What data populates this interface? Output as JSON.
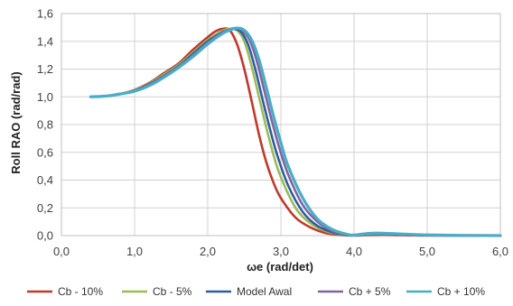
{
  "chart_data": {
    "type": "line",
    "xlabel": "ωe (rad/det)",
    "ylabel": "Roll RAO (rad/rad)",
    "xlim": [
      0,
      6
    ],
    "ylim": [
      0,
      1.6
    ],
    "x_ticks": [
      "0,0",
      "1,0",
      "2,0",
      "3,0",
      "4,0",
      "5,0",
      "6,0"
    ],
    "y_ticks": [
      "0,0",
      "0,2",
      "0,4",
      "0,6",
      "0,8",
      "1,0",
      "1,2",
      "1,4",
      "1,6"
    ],
    "grid": true,
    "legend_position": "bottom",
    "series": [
      {
        "name": "Cb - 10%",
        "color": "#c0392b",
        "points": [
          [
            0.4,
            1.0
          ],
          [
            0.6,
            1.005
          ],
          [
            0.8,
            1.02
          ],
          [
            1.0,
            1.05
          ],
          [
            1.2,
            1.1
          ],
          [
            1.4,
            1.17
          ],
          [
            1.6,
            1.24
          ],
          [
            1.8,
            1.34
          ],
          [
            2.0,
            1.43
          ],
          [
            2.1,
            1.47
          ],
          [
            2.2,
            1.49
          ],
          [
            2.3,
            1.48
          ],
          [
            2.4,
            1.38
          ],
          [
            2.5,
            1.2
          ],
          [
            2.6,
            0.97
          ],
          [
            2.7,
            0.73
          ],
          [
            2.8,
            0.53
          ],
          [
            2.9,
            0.38
          ],
          [
            3.0,
            0.27
          ],
          [
            3.2,
            0.13
          ],
          [
            3.4,
            0.06
          ],
          [
            3.6,
            0.02
          ],
          [
            3.8,
            0.005
          ],
          [
            4.0,
            0.0
          ],
          [
            4.4,
            0.005
          ],
          [
            5.0,
            0.0
          ],
          [
            6.0,
            0.0
          ]
        ]
      },
      {
        "name": "Cb - 5%",
        "color": "#9bbb59",
        "points": [
          [
            0.4,
            1.0
          ],
          [
            0.6,
            1.005
          ],
          [
            0.8,
            1.02
          ],
          [
            1.0,
            1.048
          ],
          [
            1.2,
            1.095
          ],
          [
            1.4,
            1.16
          ],
          [
            1.6,
            1.23
          ],
          [
            1.8,
            1.32
          ],
          [
            2.0,
            1.41
          ],
          [
            2.2,
            1.475
          ],
          [
            2.3,
            1.49
          ],
          [
            2.4,
            1.48
          ],
          [
            2.5,
            1.4
          ],
          [
            2.6,
            1.22
          ],
          [
            2.7,
            1.0
          ],
          [
            2.8,
            0.78
          ],
          [
            2.9,
            0.58
          ],
          [
            3.0,
            0.42
          ],
          [
            3.2,
            0.2
          ],
          [
            3.4,
            0.09
          ],
          [
            3.6,
            0.035
          ],
          [
            3.8,
            0.01
          ],
          [
            4.0,
            0.002
          ],
          [
            4.4,
            0.01
          ],
          [
            5.0,
            0.002
          ],
          [
            6.0,
            0.0
          ]
        ]
      },
      {
        "name": "Model Awal",
        "color": "#2e5d9f",
        "points": [
          [
            0.4,
            1.0
          ],
          [
            0.6,
            1.005
          ],
          [
            0.8,
            1.02
          ],
          [
            1.0,
            1.045
          ],
          [
            1.2,
            1.09
          ],
          [
            1.4,
            1.15
          ],
          [
            1.6,
            1.22
          ],
          [
            1.8,
            1.31
          ],
          [
            2.0,
            1.4
          ],
          [
            2.2,
            1.465
          ],
          [
            2.3,
            1.485
          ],
          [
            2.35,
            1.49
          ],
          [
            2.45,
            1.47
          ],
          [
            2.55,
            1.38
          ],
          [
            2.65,
            1.2
          ],
          [
            2.75,
            0.98
          ],
          [
            2.85,
            0.77
          ],
          [
            2.95,
            0.58
          ],
          [
            3.1,
            0.36
          ],
          [
            3.3,
            0.17
          ],
          [
            3.5,
            0.07
          ],
          [
            3.7,
            0.025
          ],
          [
            3.9,
            0.005
          ],
          [
            4.0,
            0.002
          ],
          [
            4.3,
            0.012
          ],
          [
            5.0,
            0.003
          ],
          [
            6.0,
            0.0
          ]
        ]
      },
      {
        "name": "Cb + 5%",
        "color": "#8064a2",
        "points": [
          [
            0.4,
            1.0
          ],
          [
            0.6,
            1.005
          ],
          [
            0.8,
            1.02
          ],
          [
            1.0,
            1.043
          ],
          [
            1.2,
            1.085
          ],
          [
            1.4,
            1.145
          ],
          [
            1.6,
            1.215
          ],
          [
            1.8,
            1.3
          ],
          [
            2.0,
            1.39
          ],
          [
            2.2,
            1.46
          ],
          [
            2.3,
            1.485
          ],
          [
            2.38,
            1.495
          ],
          [
            2.48,
            1.475
          ],
          [
            2.58,
            1.4
          ],
          [
            2.68,
            1.24
          ],
          [
            2.78,
            1.03
          ],
          [
            2.88,
            0.82
          ],
          [
            2.98,
            0.63
          ],
          [
            3.1,
            0.44
          ],
          [
            3.3,
            0.22
          ],
          [
            3.5,
            0.1
          ],
          [
            3.7,
            0.035
          ],
          [
            3.9,
            0.008
          ],
          [
            4.0,
            0.003
          ],
          [
            4.3,
            0.015
          ],
          [
            5.0,
            0.004
          ],
          [
            6.0,
            0.0
          ]
        ]
      },
      {
        "name": "Cb + 10%",
        "color": "#4bacc6",
        "points": [
          [
            0.4,
            1.0
          ],
          [
            0.6,
            1.005
          ],
          [
            0.8,
            1.02
          ],
          [
            1.0,
            1.04
          ],
          [
            1.2,
            1.08
          ],
          [
            1.4,
            1.14
          ],
          [
            1.6,
            1.21
          ],
          [
            1.8,
            1.29
          ],
          [
            2.0,
            1.38
          ],
          [
            2.2,
            1.455
          ],
          [
            2.3,
            1.48
          ],
          [
            2.4,
            1.495
          ],
          [
            2.5,
            1.48
          ],
          [
            2.6,
            1.41
          ],
          [
            2.7,
            1.27
          ],
          [
            2.8,
            1.07
          ],
          [
            2.9,
            0.86
          ],
          [
            3.0,
            0.67
          ],
          [
            3.1,
            0.5
          ],
          [
            3.3,
            0.27
          ],
          [
            3.5,
            0.12
          ],
          [
            3.7,
            0.045
          ],
          [
            3.9,
            0.01
          ],
          [
            4.0,
            0.004
          ],
          [
            4.3,
            0.018
          ],
          [
            5.0,
            0.005
          ],
          [
            6.0,
            0.0
          ]
        ]
      }
    ]
  }
}
